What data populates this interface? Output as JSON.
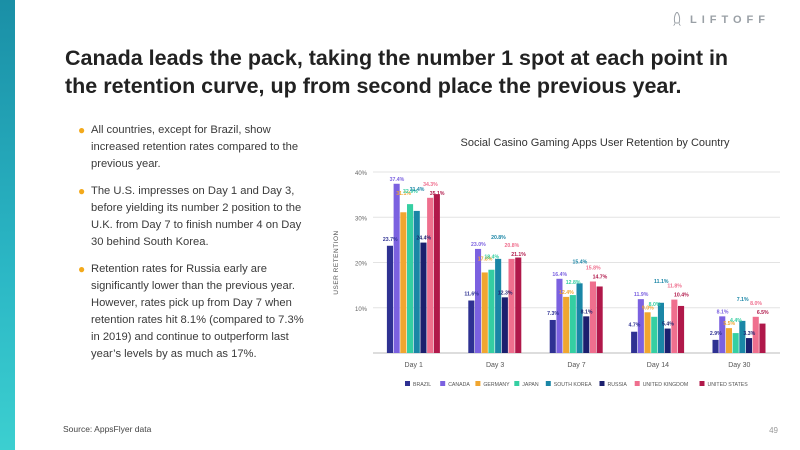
{
  "brand": {
    "name": "LIFTOFF"
  },
  "headline": "Canada leads the pack, taking the number 1 spot at each point in the retention curve, up from second place the previous year.",
  "bullets": [
    "All countries, except for Brazil, show increased retention rates compared to the previous year.",
    "The U.S. impresses on Day 1 and Day 3, before yielding its number 2 position to the U.K. from Day 7 to finish number 4 on Day 30 behind South Korea.",
    "Retention rates for Russia early are significantly lower than the previous year. However, rates pick up from Day 7 when retention rates hit 8.1% (compared to 7.3% in 2019) and continue to outperform last year’s levels by as much as 17%."
  ],
  "source": "Source: AppsFlyer data",
  "page_number": "49",
  "colors": {
    "accent": "#2bb7c5",
    "bullet": "#f3a91b"
  },
  "chart_data": {
    "type": "bar",
    "title": "Social Casino Gaming Apps User Retention by Country",
    "ylabel": "USER RETENTION",
    "xlabel": "",
    "ylim": [
      0,
      40
    ],
    "yticks": [
      10,
      20,
      30,
      40
    ],
    "ytick_labels": [
      "10%",
      "20%",
      "30%",
      "40%"
    ],
    "categories": [
      "Day 1",
      "Day 3",
      "Day 7",
      "Day 14",
      "Day 30"
    ],
    "series": [
      {
        "name": "BRAZIL",
        "color": "#2e3192",
        "values": [
          23.7,
          11.6,
          7.3,
          4.7,
          2.9
        ]
      },
      {
        "name": "CANADA",
        "color": "#7b61e0",
        "values": [
          37.4,
          23.0,
          16.4,
          11.9,
          8.1
        ]
      },
      {
        "name": "GERMANY",
        "color": "#f0a630",
        "values": [
          31.1,
          17.8,
          12.4,
          9.0,
          5.5
        ]
      },
      {
        "name": "JAPAN",
        "color": "#35cfa2",
        "values": [
          32.9,
          18.4,
          12.8,
          8.0,
          4.4
        ]
      },
      {
        "name": "SOUTH KOREA",
        "color": "#1a86a6",
        "values": [
          31.4,
          20.8,
          15.4,
          11.1,
          7.1
        ]
      },
      {
        "name": "RUSSIA",
        "color": "#1b1f6e",
        "values": [
          24.4,
          12.3,
          8.1,
          5.4,
          3.3
        ]
      },
      {
        "name": "UNITED KINGDOM",
        "color": "#ef6f8e",
        "values": [
          34.3,
          20.8,
          15.8,
          11.8,
          8.0
        ]
      },
      {
        "name": "UNITED STATES",
        "color": "#b0184a",
        "values": [
          35.1,
          21.1,
          14.7,
          10.4,
          6.5
        ]
      }
    ],
    "data_labels": [
      [
        "23.7%",
        "37.4%",
        "31.1%",
        "32.9%",
        "31.4%",
        "24.4%",
        "34.3%",
        "35.1%"
      ],
      [
        "11.6%",
        "23.0%",
        "17.8%",
        "18.4%",
        "20.8%",
        "12.3%",
        "20.8%",
        "21.1%"
      ],
      [
        "7.3%",
        "16.4%",
        "12.4%",
        "12.8%",
        "15.4%",
        "8.1%",
        "15.8%",
        "14.7%"
      ],
      [
        "4.7%",
        "11.9%",
        "9.0%",
        "8.0%",
        "11.1%",
        "5.4%",
        "11.8%",
        "10.4%"
      ],
      [
        "2.9%",
        "8.1%",
        "5.5%",
        "4.4%",
        "7.1%",
        "3.3%",
        "8.0%",
        "6.5%"
      ]
    ],
    "legend_position": "bottom",
    "grid": true
  }
}
